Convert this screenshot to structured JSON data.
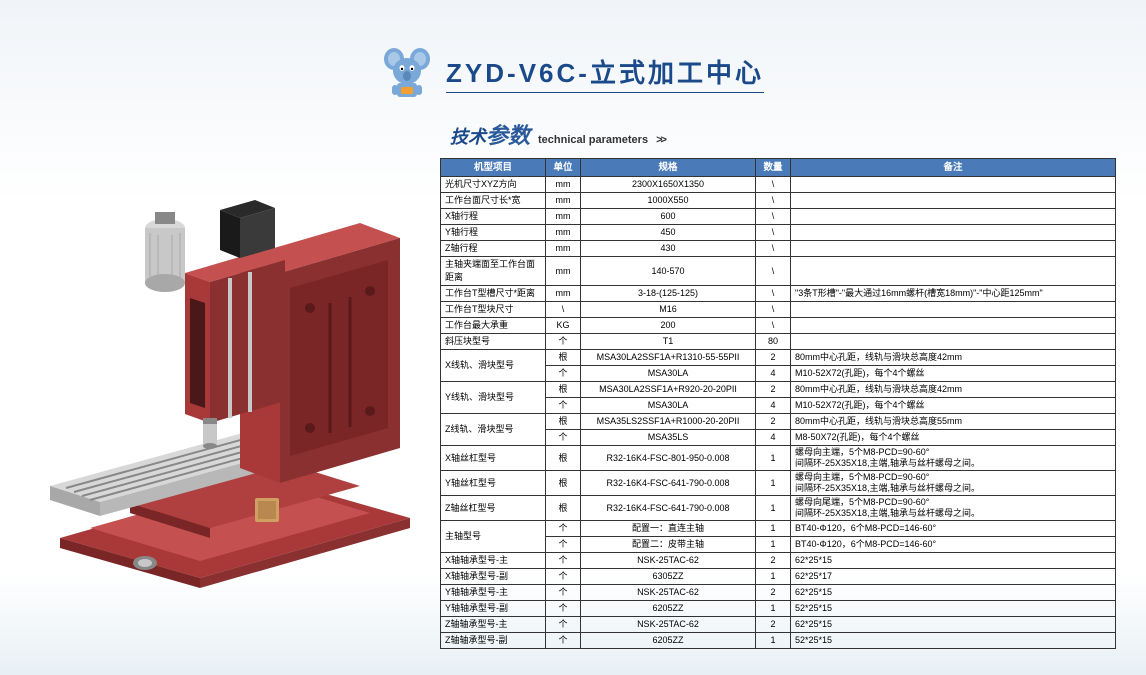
{
  "title": "ZYD-V6C-立式加工中心",
  "subtitle_zh_pre": "技术",
  "subtitle_zh_big": "参数",
  "subtitle_en": "technical parameters",
  "subtitle_arrows": ">>",
  "headers": {
    "item": "机型项目",
    "unit": "单位",
    "spec": "规格",
    "qty": "数量",
    "note": "备注"
  },
  "rows": [
    {
      "item": "光机尺寸XYZ方向",
      "unit": "mm",
      "spec": "2300X1650X1350",
      "qty": "\\",
      "note": ""
    },
    {
      "item": "工作台面尺寸长*宽",
      "unit": "mm",
      "spec": "1000X550",
      "qty": "\\",
      "note": ""
    },
    {
      "item": "X轴行程",
      "unit": "mm",
      "spec": "600",
      "qty": "\\",
      "note": ""
    },
    {
      "item": "Y轴行程",
      "unit": "mm",
      "spec": "450",
      "qty": "\\",
      "note": ""
    },
    {
      "item": "Z轴行程",
      "unit": "mm",
      "spec": "430",
      "qty": "\\",
      "note": ""
    },
    {
      "item": "主轴夹端面至工作台面距离",
      "unit": "mm",
      "spec": "140-570",
      "qty": "\\",
      "note": ""
    },
    {
      "item": "工作台T型槽尺寸*距离",
      "unit": "mm",
      "spec": "3-18-(125-125)",
      "qty": "\\",
      "note": "\"3条T形槽\"-\"最大通过16mm螺杆(槽宽18mm)\"-\"中心距125mm\""
    },
    {
      "item": "工作台T型块尺寸",
      "unit": "\\",
      "spec": "M16",
      "qty": "\\",
      "note": ""
    },
    {
      "item": "工作台最大承重",
      "unit": "KG",
      "spec": "200",
      "qty": "\\",
      "note": ""
    },
    {
      "item": "斜压块型号",
      "unit": "个",
      "spec": "T1",
      "qty": "80",
      "note": ""
    },
    {
      "item": "X线轨、滑块型号",
      "unit": "根",
      "spec": "MSA30LA2SSF1A+R1310-55-55PII",
      "qty": "2",
      "note": "80mm中心孔距，线轨与滑块总高度42mm",
      "rowspan": 2
    },
    {
      "unit": "个",
      "spec": "MSA30LA",
      "qty": "4",
      "note": "M10-52X72(孔距)，每个4个螺丝"
    },
    {
      "item": "Y线轨、滑块型号",
      "unit": "根",
      "spec": "MSA30LA2SSF1A+R920-20-20PII",
      "qty": "2",
      "note": "80mm中心孔距，线轨与滑块总高度42mm",
      "rowspan": 2
    },
    {
      "unit": "个",
      "spec": "MSA30LA",
      "qty": "4",
      "note": "M10-52X72(孔距)，每个4个螺丝"
    },
    {
      "item": "Z线轨、滑块型号",
      "unit": "根",
      "spec": "MSA35LS2SSF1A+R1000-20-20PII",
      "qty": "2",
      "note": "80mm中心孔距，线轨与滑块总高度55mm",
      "rowspan": 2
    },
    {
      "unit": "个",
      "spec": "MSA35LS",
      "qty": "4",
      "note": "M8-50X72(孔距)，每个4个螺丝"
    },
    {
      "item": "X轴丝杠型号",
      "unit": "根",
      "spec": "R32-16K4-FSC-801-950-0.008",
      "qty": "1",
      "note": "螺母向主端，5个M8-PCD=90-60°\n间隔环-25X35X18,主端,轴承与丝杆螺母之间。"
    },
    {
      "item": "Y轴丝杠型号",
      "unit": "根",
      "spec": "R32-16K4-FSC-641-790-0.008",
      "qty": "1",
      "note": "螺母向主端，5个M8-PCD=90-60°\n间隔环-25X35X18,主端,轴承与丝杆螺母之间。"
    },
    {
      "item": "Z轴丝杠型号",
      "unit": "根",
      "spec": "R32-16K4-FSC-641-790-0.008",
      "qty": "1",
      "note": "螺母向尾端，5个M8-PCD=90-60°\n间隔环-25X35X18,主端,轴承与丝杆螺母之间。"
    },
    {
      "item": "主轴型号",
      "unit": "个",
      "spec": "配置一：直连主轴",
      "qty": "1",
      "note": "BT40-Φ120，6个M8-PCD=146-60°",
      "rowspan": 2
    },
    {
      "unit": "个",
      "spec": "配置二：皮带主轴",
      "qty": "1",
      "note": "BT40-Φ120，6个M8-PCD=146-60°"
    },
    {
      "item": "X轴轴承型号-主",
      "unit": "个",
      "spec": "NSK-25TAC-62",
      "qty": "2",
      "note": "62*25*15"
    },
    {
      "item": "X轴轴承型号-副",
      "unit": "个",
      "spec": "6305ZZ",
      "qty": "1",
      "note": "62*25*17"
    },
    {
      "item": "Y轴轴承型号-主",
      "unit": "个",
      "spec": "NSK-25TAC-62",
      "qty": "2",
      "note": "62*25*15"
    },
    {
      "item": "Y轴轴承型号-副",
      "unit": "个",
      "spec": "6205ZZ",
      "qty": "1",
      "note": "52*25*15"
    },
    {
      "item": "Z轴轴承型号-主",
      "unit": "个",
      "spec": "NSK-25TAC-62",
      "qty": "2",
      "note": "62*25*15"
    },
    {
      "item": "Z轴轴承型号-副",
      "unit": "个",
      "spec": "6205ZZ",
      "qty": "1",
      "note": "52*25*15"
    }
  ],
  "machine_colors": {
    "body": "#a93838",
    "body_dark": "#7a2626",
    "body_light": "#c55050",
    "metal": "#c8c8c8",
    "metal_dark": "#888888",
    "black": "#2a2a2a",
    "table": "#d8d8d8"
  },
  "mascot_colors": {
    "body": "#7aa8d8",
    "ear": "#5a88b8",
    "badge": "#f0a030"
  }
}
